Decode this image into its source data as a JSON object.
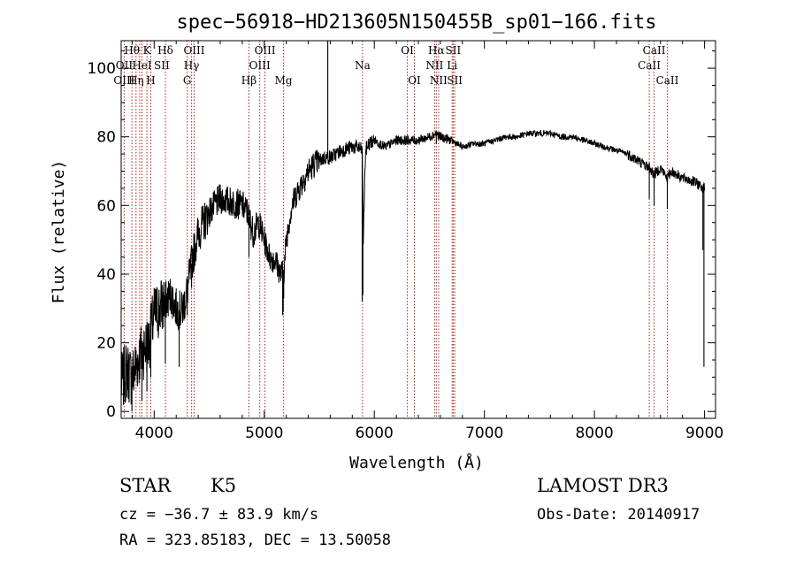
{
  "chart_data": {
    "type": "line",
    "title": "spec−56918−HD213605N150455B_sp01−166.fits",
    "xlabel": "Wavelength (Å)",
    "ylabel": "Flux (relative)",
    "xlim": [
      3700,
      9100
    ],
    "ylim": [
      -2,
      108
    ],
    "xticks": [
      4000,
      5000,
      6000,
      7000,
      8000,
      9000
    ],
    "yticks": [
      0,
      20,
      40,
      60,
      80,
      100
    ],
    "x_minor_step": 200,
    "y_minor_step": 5,
    "spectrum_outline": {
      "x": [
        3700,
        3750,
        3800,
        3850,
        3900,
        3950,
        4000,
        4050,
        4100,
        4150,
        4200,
        4250,
        4300,
        4350,
        4400,
        4500,
        4600,
        4700,
        4800,
        4850,
        4900,
        4950,
        5000,
        5050,
        5100,
        5150,
        5180,
        5200,
        5250,
        5300,
        5350,
        5400,
        5450,
        5500,
        5550,
        5600,
        5650,
        5700,
        5800,
        5850,
        5890,
        5900,
        5920,
        5950,
        6000,
        6050,
        6100,
        6200,
        6300,
        6400,
        6500,
        6560,
        6600,
        6700,
        6800,
        6900,
        7000,
        7100,
        7200,
        7300,
        7400,
        7500,
        7600,
        7700,
        7800,
        7900,
        8000,
        8100,
        8200,
        8300,
        8400,
        8500,
        8540,
        8600,
        8660,
        8700,
        8800,
        8900,
        8950,
        9000
      ],
      "y": [
        8,
        12,
        10,
        15,
        18,
        20,
        28,
        30,
        32,
        34,
        30,
        29,
        35,
        45,
        52,
        58,
        62,
        61,
        60,
        58,
        52,
        55,
        50,
        45,
        44,
        40,
        41,
        50,
        60,
        64,
        67,
        70,
        72,
        73,
        74,
        74,
        75,
        76,
        77,
        77,
        76,
        50,
        76,
        78,
        79,
        78,
        77,
        79,
        79,
        79,
        80,
        81,
        80,
        79,
        77,
        78,
        78,
        79,
        80,
        80,
        81,
        81,
        81,
        80,
        80,
        79,
        78,
        77,
        76,
        75,
        73,
        71,
        69,
        71,
        68,
        70,
        68,
        67,
        66,
        65
      ]
    },
    "line_marks": [
      {
        "x": 3727,
        "y": 8
      },
      {
        "x": 3760,
        "y": 15
      },
      {
        "x": 3798,
        "y": 0
      },
      {
        "x": 3835,
        "y": 18
      },
      {
        "x": 3889,
        "y": 3
      },
      {
        "x": 3934,
        "y": 6
      },
      {
        "x": 3969,
        "y": 10
      },
      {
        "x": 4102,
        "y": 14
      },
      {
        "x": 4227,
        "y": 13
      },
      {
        "x": 4300,
        "y": 28
      },
      {
        "x": 4340,
        "y": 36
      },
      {
        "x": 4861,
        "y": 45
      },
      {
        "x": 5167,
        "y": 28
      },
      {
        "x": 5172,
        "y": 29
      },
      {
        "x": 5177,
        "y": 33
      },
      {
        "x": 5577,
        "y": 110
      },
      {
        "x": 5890,
        "y": 32
      },
      {
        "x": 5896,
        "y": 34
      },
      {
        "x": 6563,
        "y": 78
      },
      {
        "x": 8498,
        "y": 62
      },
      {
        "x": 8542,
        "y": 60
      },
      {
        "x": 8662,
        "y": 59
      },
      {
        "x": 8985,
        "y": 47
      },
      {
        "x": 8995,
        "y": 13
      }
    ],
    "reference_lines": [
      3727,
      3798,
      3835,
      3869,
      3889,
      3934,
      3969,
      4102,
      4300,
      4340,
      4363,
      4861,
      4959,
      5007,
      5175,
      5893,
      6300,
      6364,
      6548,
      6563,
      6584,
      6707,
      6717,
      6731,
      8498,
      8542,
      8662
    ],
    "annotations": [
      {
        "text": "Hθ",
        "x": 3798,
        "row": 1
      },
      {
        "text": "K",
        "x": 3934,
        "row": 1
      },
      {
        "text": "Hδ",
        "x": 4102,
        "row": 1
      },
      {
        "text": "OIII",
        "x": 4363,
        "row": 1
      },
      {
        "text": "OIII",
        "x": 5007,
        "row": 1
      },
      {
        "text": "OI",
        "x": 6300,
        "row": 1
      },
      {
        "text": "Hα",
        "x": 6563,
        "row": 1
      },
      {
        "text": "SII",
        "x": 6717,
        "row": 1
      },
      {
        "text": "CaII",
        "x": 8542,
        "row": 1
      },
      {
        "text": "OII",
        "x": 3727,
        "row": 2
      },
      {
        "text": "HeI",
        "x": 3889,
        "row": 2
      },
      {
        "text": "SII",
        "x": 4069,
        "row": 2
      },
      {
        "text": "Hγ",
        "x": 4340,
        "row": 2
      },
      {
        "text": "OIII",
        "x": 4959,
        "row": 2
      },
      {
        "text": "Na",
        "x": 5893,
        "row": 2
      },
      {
        "text": "NII",
        "x": 6548,
        "row": 2
      },
      {
        "text": "Li",
        "x": 6707,
        "row": 2
      },
      {
        "text": "CaII",
        "x": 8498,
        "row": 2
      },
      {
        "text": "OIII",
        "x": 3727,
        "row": 3
      },
      {
        "text": "Hη",
        "x": 3835,
        "row": 3
      },
      {
        "text": "H",
        "x": 3969,
        "row": 3
      },
      {
        "text": "G",
        "x": 4300,
        "row": 3
      },
      {
        "text": "Hβ",
        "x": 4861,
        "row": 3
      },
      {
        "text": "Mg",
        "x": 5175,
        "row": 3
      },
      {
        "text": "OI",
        "x": 6364,
        "row": 3
      },
      {
        "text": "NII",
        "x": 6584,
        "row": 3
      },
      {
        "text": "SII",
        "x": 6731,
        "row": 3
      },
      {
        "text": "CaII",
        "x": 8662,
        "row": 3
      }
    ],
    "colors": {
      "spectrum": "#000000",
      "reference_lines": "#b22222",
      "axes": "#000000"
    }
  },
  "info": {
    "object_class": "STAR",
    "subclass": "K5",
    "survey": "LAMOST DR3",
    "redshift": "cz = −36.7 ± 83.9 km/s",
    "obs_date": "Obs-Date: 20140917",
    "coords": "RA = 323.85183, DEC =  13.50058"
  }
}
